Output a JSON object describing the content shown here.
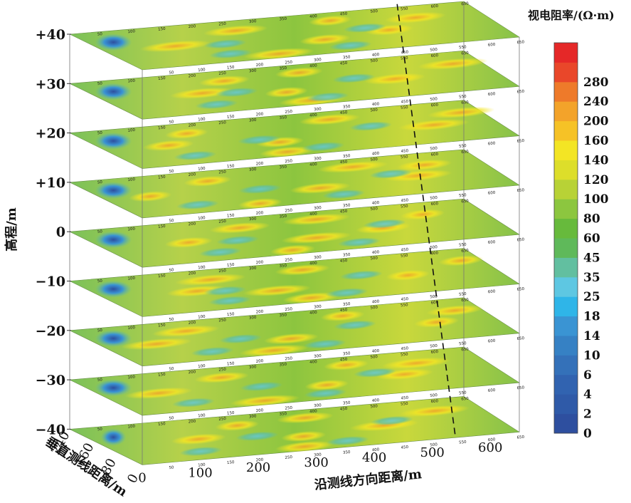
{
  "chart_data": {
    "type": "heatmap",
    "title": "",
    "colorbar": {
      "title": "视电阻率/(Ω·m)",
      "ticks": [
        "0",
        "2",
        "4",
        "6",
        "10",
        "14",
        "18",
        "25",
        "35",
        "45",
        "60",
        "80",
        "100",
        "120",
        "140",
        "160",
        "200",
        "240",
        "280"
      ],
      "colors": [
        "#2e4f9f",
        "#2f5aa8",
        "#3163b0",
        "#3471b9",
        "#3681c4",
        "#3a94d3",
        "#2fb5e8",
        "#5ec7e2",
        "#62bfa0",
        "#5fb95a",
        "#67ba3c",
        "#8cc63f",
        "#b8d236",
        "#ddde2a",
        "#f3e524",
        "#f6c226",
        "#f3a32a",
        "#ee7a2a",
        "#e9472a",
        "#e52828"
      ]
    },
    "z_axis": {
      "label": "高程/m",
      "ticks": [
        "+40",
        "+30",
        "+20",
        "+10",
        "0",
        "−10",
        "−20",
        "−30",
        "−40"
      ]
    },
    "x_axis": {
      "label": "沿测线方向距离/m",
      "ticks": [
        "0",
        "100",
        "200",
        "300",
        "400",
        "500",
        "600"
      ],
      "range": [
        0,
        650
      ]
    },
    "y_axis": {
      "label": "垂直测线距离/m",
      "ticks": [
        "0",
        "80",
        "160",
        "240"
      ],
      "range": [
        0,
        240
      ]
    },
    "marker_x": 540
  }
}
